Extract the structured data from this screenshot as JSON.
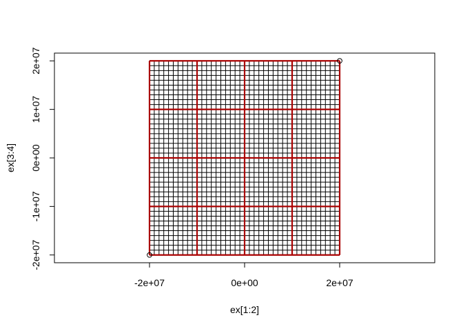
{
  "chart_data": {
    "type": "scatter",
    "title": "",
    "xlabel": "ex[1:2]",
    "ylabel": "ex[3:4]",
    "xlim": [
      -40000000,
      40000000
    ],
    "ylim": [
      -21600000,
      21600000
    ],
    "grid": false,
    "x_ticks": [
      {
        "value": -20000000,
        "label": "-2e+07"
      },
      {
        "value": 0,
        "label": "0e+00"
      },
      {
        "value": 20000000,
        "label": "2e+07"
      }
    ],
    "y_ticks": [
      {
        "value": -20000000,
        "label": "-2e+07"
      },
      {
        "value": -10000000,
        "label": "-1e+07"
      },
      {
        "value": 0,
        "label": "0e+00"
      },
      {
        "value": 10000000,
        "label": "1e+07"
      },
      {
        "value": 20000000,
        "label": "2e+07"
      }
    ],
    "points": [
      {
        "x": -20000000,
        "y": -20000000
      },
      {
        "x": 20000000,
        "y": 20000000
      }
    ],
    "fine_grid": {
      "xmin": -20000000,
      "xmax": 20000000,
      "ymin": -20000000,
      "ymax": 20000000,
      "step": 1000000,
      "color": "#000000"
    },
    "coarse_grid": {
      "xmin": -20000000,
      "xmax": 20000000,
      "ymin": -20000000,
      "ymax": 20000000,
      "step": 10000000,
      "color": "#aa0000"
    }
  }
}
